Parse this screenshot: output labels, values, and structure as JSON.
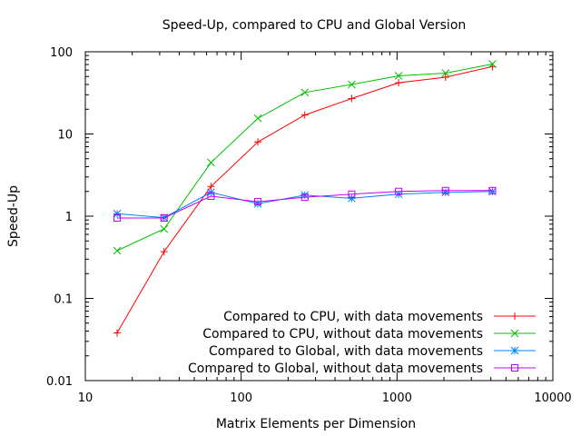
{
  "chart_data": {
    "type": "line",
    "title": "Speed-Up, compared to CPU and Global Version",
    "xlabel": "Matrix Elements per Dimension",
    "ylabel": "Speed-Up",
    "x_scale": "log",
    "y_scale": "log",
    "xlim": [
      10,
      10000
    ],
    "ylim": [
      0.01,
      100
    ],
    "x_ticks": [
      10,
      100,
      1000,
      10000
    ],
    "x_tick_labels": [
      "10",
      "100",
      "1000",
      "10000"
    ],
    "y_ticks": [
      0.01,
      0.1,
      1,
      10,
      100
    ],
    "y_tick_labels": [
      "0.01",
      "0.1",
      "1",
      "10",
      "100"
    ],
    "grid": false,
    "legend_position": "bottom-right",
    "x": [
      16,
      32,
      64,
      128,
      256,
      512,
      1024,
      2048,
      4096
    ],
    "series": [
      {
        "name": "Compared to CPU, with data movements",
        "color": "#ff0000",
        "marker": "plus",
        "values": [
          0.038,
          0.37,
          2.3,
          8.0,
          17.0,
          27.0,
          42.0,
          49.0,
          66.0
        ]
      },
      {
        "name": "Compared to CPU, without data movements",
        "color": "#00c000",
        "marker": "cross",
        "values": [
          0.38,
          0.7,
          4.5,
          15.5,
          32.0,
          40.0,
          51.0,
          55.0,
          71.0
        ]
      },
      {
        "name": "Compared to Global, with data movements",
        "color": "#0080ff",
        "marker": "star",
        "values": [
          1.07,
          0.96,
          1.95,
          1.42,
          1.8,
          1.65,
          1.85,
          1.95,
          2.0
        ]
      },
      {
        "name": "Compared to Global, without data movements",
        "color": "#c000ff",
        "marker": "square",
        "values": [
          0.95,
          0.95,
          1.75,
          1.5,
          1.7,
          1.85,
          2.0,
          2.05,
          2.05
        ]
      }
    ]
  }
}
